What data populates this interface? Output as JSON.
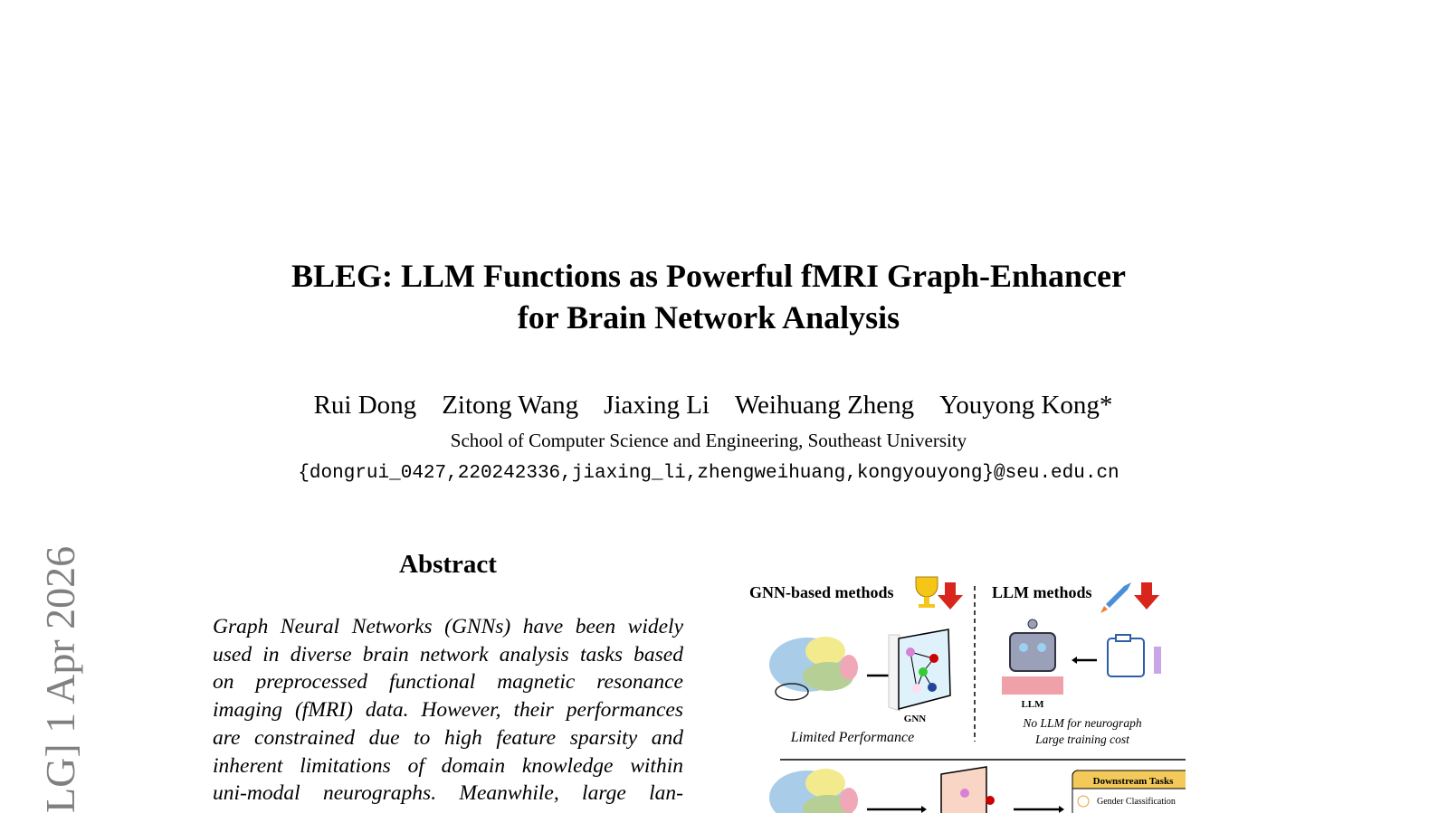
{
  "title_lines": [
    "BLEG: LLM Functions as Powerful fMRI Graph-Enhancer",
    "for Brain Network Analysis"
  ],
  "authors": [
    "Rui Dong",
    "Zitong Wang",
    "Jiaxing Li",
    "Weihuang Zheng",
    "Youyong Kong*"
  ],
  "affiliation": "School of Computer Science and Engineering, Southeast University",
  "email": "{dongrui_0427,220242336,jiaxing_li,zhengweihuang,kongyouyong}@seu.edu.cn",
  "arxiv_stamp": "LG]  1 Apr 2026",
  "abstract": {
    "heading": "Abstract",
    "lines": [
      "Graph Neural Networks (GNNs) have been widely",
      "used in diverse brain network analysis tasks based",
      "on preprocessed functional magnetic resonance",
      "imaging (fMRI) data. However, their performances",
      "are constrained due to high feature sparsity and",
      "inherent limitations of domain knowledge within",
      "uni-modal neurographs. Meanwhile, large lan-"
    ]
  },
  "figure": {
    "gnn_heading": "GNN-based methods",
    "llm_heading": "LLM methods",
    "gnn_label": "GNN",
    "llm_label": "LLM",
    "gnn_caption": "Limited Performance",
    "llm_caption": [
      "No LLM for neurograph",
      "Large training cost"
    ],
    "downstream_title": "Downstream Tasks",
    "downstream_item": "Gender Classification",
    "colors": {
      "arrow_red": "#d9261c",
      "downstream_header": "#f3c95a"
    }
  }
}
